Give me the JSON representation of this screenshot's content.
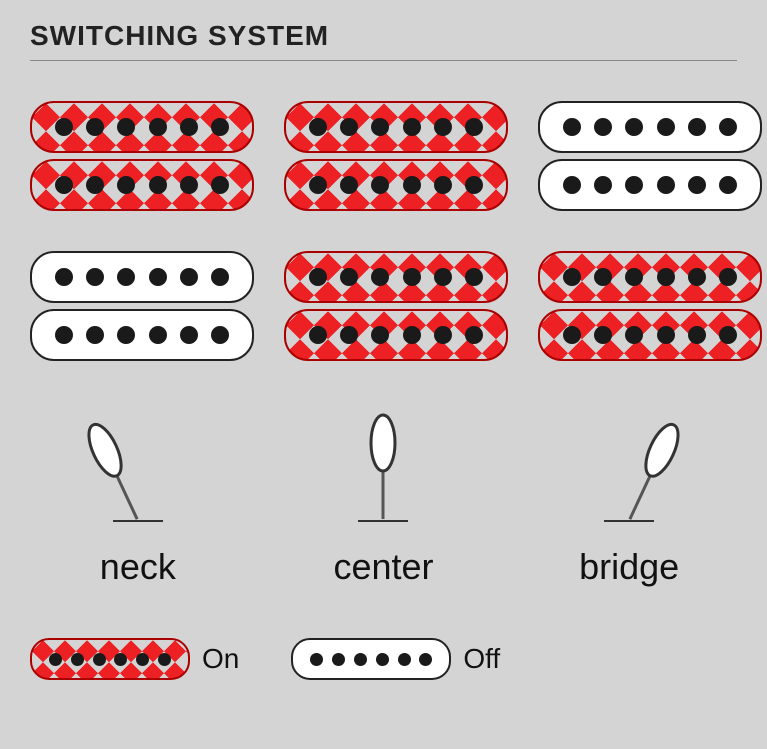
{
  "title": "SWITCHING SYSTEM",
  "colors": {
    "background": "#d4d4d4",
    "on_fill": "#ed2024",
    "off_fill": "#ffffff",
    "dot": "#1a1a1a",
    "border_on": "#a00000",
    "border_off": "#222222",
    "diamond_pattern": "#d4d4d4"
  },
  "pole_count": 6,
  "pickup_rows": [
    {
      "cells": [
        {
          "top": "on",
          "bottom": "on"
        },
        {
          "top": "on",
          "bottom": "on"
        },
        {
          "top": "off",
          "bottom": "off"
        }
      ]
    },
    {
      "cells": [
        {
          "top": "off",
          "bottom": "off"
        },
        {
          "top": "on",
          "bottom": "on"
        },
        {
          "top": "on",
          "bottom": "on"
        }
      ]
    }
  ],
  "switches": [
    {
      "label": "neck",
      "angle": -25
    },
    {
      "label": "center",
      "angle": 0
    },
    {
      "label": "bridge",
      "angle": 25
    }
  ],
  "legend": {
    "on_label": "On",
    "off_label": "Off",
    "pole_count": 6
  }
}
